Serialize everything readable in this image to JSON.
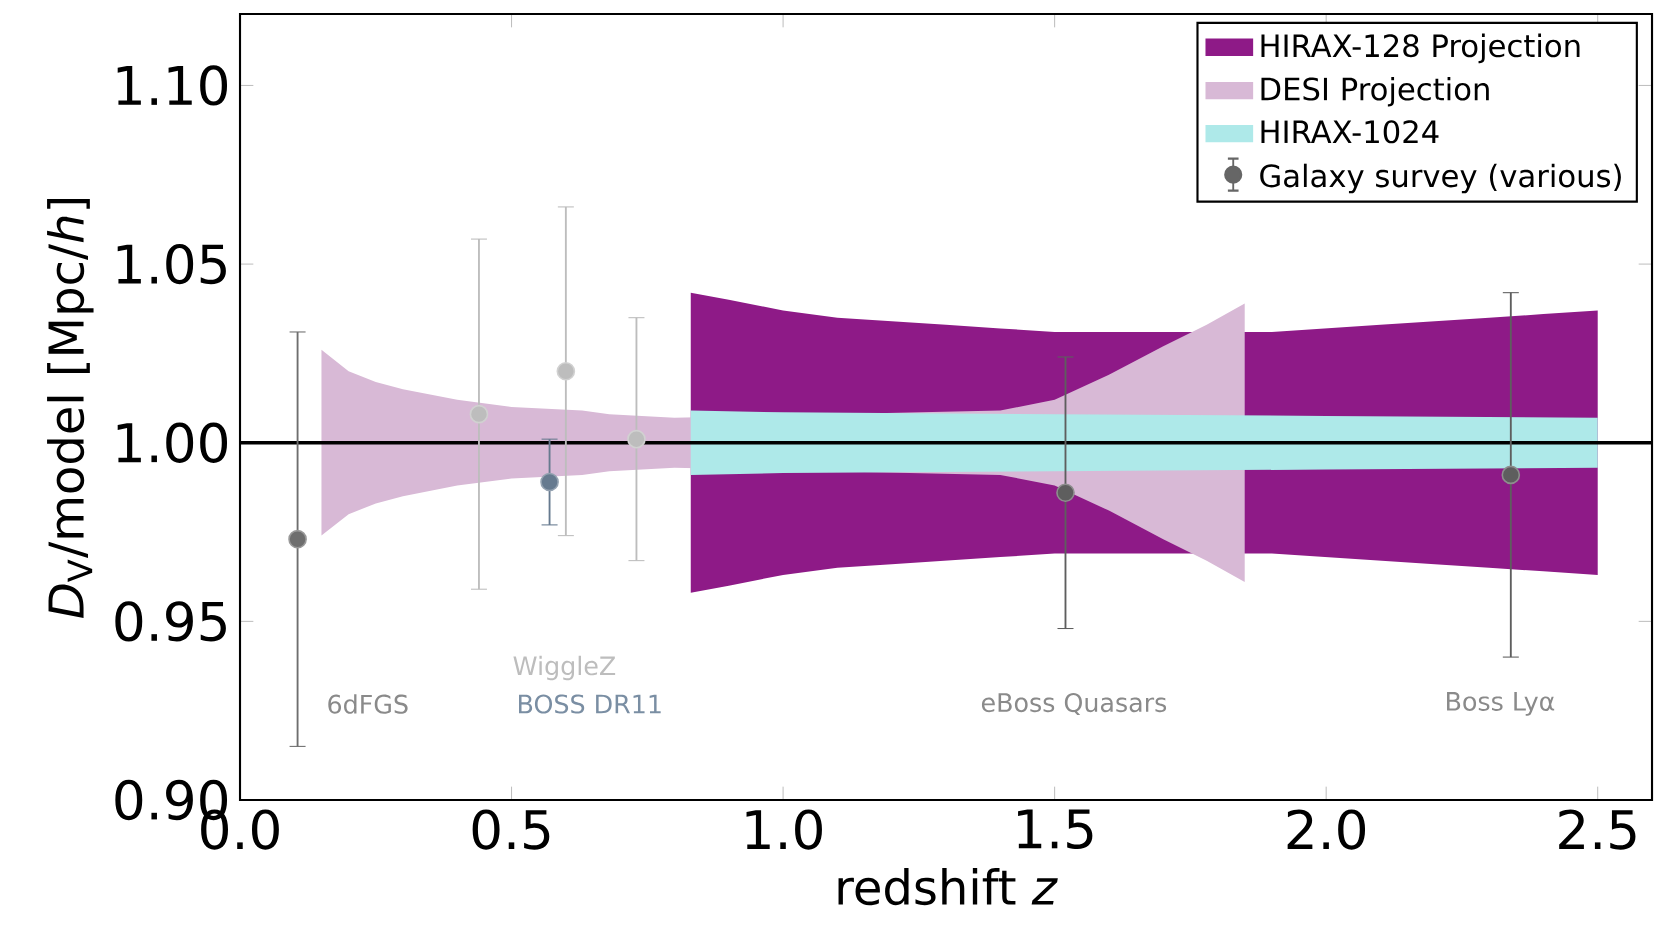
{
  "chart_data": {
    "type": "area",
    "xlabel": "redshift *z*",
    "ylabel": "*D*$_{V}$/model [Mpc/*h*]",
    "xlim": [
      0,
      2.6
    ],
    "ylim": [
      0.9,
      1.12
    ],
    "xticks": [
      {
        "value": 0,
        "label": "0.0"
      },
      {
        "value": 0.5,
        "label": "0.5"
      },
      {
        "value": 1,
        "label": "1.0"
      },
      {
        "value": 1.5,
        "label": "1.5"
      },
      {
        "value": 2,
        "label": "2.0"
      },
      {
        "value": 2.5,
        "label": "2.5"
      }
    ],
    "yticks": [
      {
        "value": 0.9,
        "label": "0.90"
      },
      {
        "value": 0.95,
        "label": "0.95"
      },
      {
        "value": 1.0,
        "label": "1.00"
      },
      {
        "value": 1.05,
        "label": "1.05"
      },
      {
        "value": 1.1,
        "label": "1.10"
      }
    ],
    "legend": "top right",
    "ref_lines": [
      {
        "axis": "y",
        "value": 1.0,
        "color": "#000000"
      }
    ],
    "annotations": [
      "6dFGS",
      "WiggleZ",
      "BOSS DR11",
      "eBoss Quasars",
      "Boss Lyα"
    ],
    "series": [
      {
        "name": "HIRAX-128 Projection",
        "color": "#8e1a87",
        "x": [
          0.83,
          0.9,
          1.0,
          1.1,
          1.2,
          1.3,
          1.4,
          1.5,
          1.6,
          1.7,
          1.8,
          1.9,
          2.0,
          2.1,
          2.2,
          2.3,
          2.4,
          2.5
        ],
        "values": [
          null,
          null,
          null,
          null,
          null,
          null,
          null,
          null,
          null,
          null,
          null,
          null,
          null,
          null,
          null,
          null,
          null,
          null
        ],
        "upper": [
          1.042,
          1.04,
          1.037,
          1.035,
          1.034,
          1.033,
          1.032,
          1.031,
          1.031,
          1.031,
          null,
          1.031,
          1.032,
          1.033,
          1.034,
          1.035,
          1.036,
          1.037
        ],
        "lower": [
          0.958,
          0.96,
          0.963,
          0.965,
          0.966,
          0.967,
          0.968,
          0.969,
          0.969,
          0.969,
          null,
          0.969,
          0.968,
          0.967,
          0.966,
          0.965,
          0.964,
          0.963
        ]
      },
      {
        "name": "DESI Projection",
        "color": "#d8b9d6",
        "x": [
          0.15,
          0.2,
          0.25,
          0.3,
          0.4,
          0.5,
          0.63,
          0.68,
          0.8,
          0.9,
          1.0,
          1.1,
          1.2,
          1.3,
          1.4,
          1.5,
          1.6,
          1.7,
          1.78,
          1.85
        ],
        "values": [
          null,
          null,
          null,
          null,
          null,
          null,
          null,
          null,
          null,
          null,
          null,
          null,
          null,
          null,
          null,
          null,
          null,
          null,
          null,
          null
        ],
        "upper": [
          1.026,
          1.02,
          1.017,
          1.015,
          1.012,
          1.01,
          1.009,
          1.008,
          1.007,
          null,
          null,
          null,
          null,
          null,
          1.009,
          1.012,
          1.019,
          1.027,
          1.033,
          1.039
        ],
        "lower": [
          0.974,
          0.98,
          0.983,
          0.985,
          0.988,
          0.99,
          0.991,
          0.992,
          0.993,
          null,
          null,
          null,
          null,
          null,
          0.991,
          0.988,
          0.981,
          0.973,
          0.967,
          0.961
        ]
      },
      {
        "name": "HIRAX-1024",
        "color": "#aee9e9",
        "x": [
          0.83,
          1.0,
          1.5,
          2.0,
          2.5
        ],
        "values": [
          null,
          null,
          null,
          null,
          null
        ],
        "upper": [
          1.009,
          1.0085,
          1.008,
          1.0075,
          1.007
        ],
        "lower": [
          0.991,
          0.9915,
          0.992,
          0.9925,
          0.993
        ]
      },
      {
        "name": "Galaxy survey (various)",
        "type": "scatter",
        "marker": "circle",
        "color": "#666666",
        "x": [
          0.106,
          0.44,
          0.57,
          0.6,
          0.73,
          1.52,
          2.34
        ],
        "values": [
          0.973,
          1.008,
          0.989,
          1.02,
          1.001,
          0.986,
          0.991
        ],
        "errors": [
          0.058,
          0.049,
          0.012,
          0.046,
          0.034,
          0.038,
          0.051
        ],
        "colors": [
          "#6e6e6e",
          "#bdbdbd",
          "#667a8f",
          "#bdbdbd",
          "#bdbdbd",
          "#5e5e5e",
          "#5e5e5e"
        ]
      }
    ]
  }
}
